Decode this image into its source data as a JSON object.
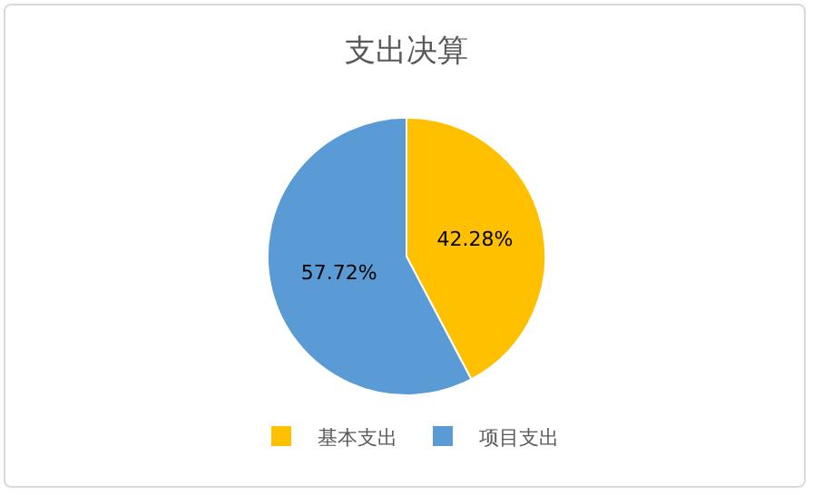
{
  "chart_data": {
    "type": "pie",
    "title": "支出决算",
    "categories": [
      "基本支出",
      "项目支出"
    ],
    "values": [
      42.28,
      57.72
    ],
    "value_labels": [
      "42.28%",
      "57.72%"
    ],
    "colors": [
      "#ffc000",
      "#5b9bd5"
    ],
    "legend": "bottom"
  }
}
